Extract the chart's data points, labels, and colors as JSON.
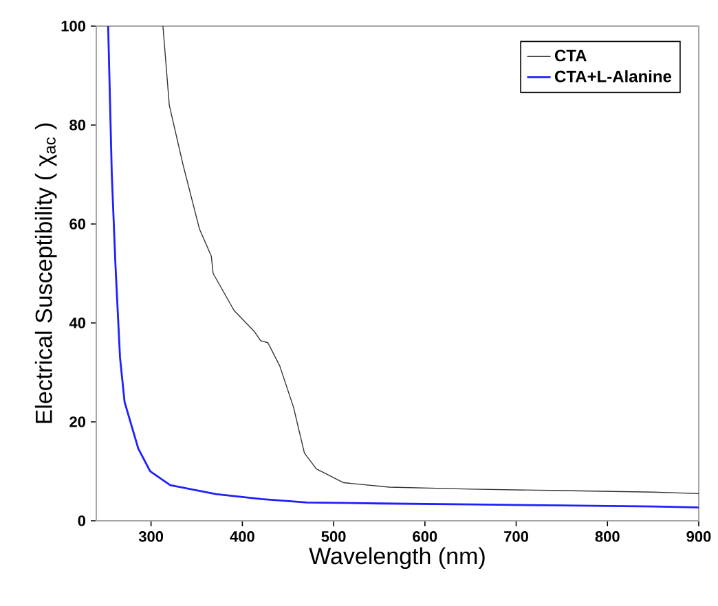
{
  "chart_data": {
    "type": "line",
    "xlabel": "Wavelength (nm)",
    "ylabel": "Electrical Susceptibility ( χ$_{ac}$ )",
    "xlim": [
      240,
      900
    ],
    "ylim": [
      0,
      100
    ],
    "xticks": [
      300,
      400,
      500,
      600,
      700,
      800,
      900
    ],
    "yticks": [
      0,
      20,
      40,
      60,
      80,
      100
    ],
    "grid": false,
    "legend": "top right",
    "marker": "none",
    "line_style": "solid",
    "series": [
      {
        "name": "CTA",
        "color": "#333333",
        "x": [
          313,
          320,
          335,
          353,
          366,
          368,
          391,
          413,
          420,
          428,
          441,
          456,
          468,
          481,
          511,
          561,
          650,
          750,
          850,
          900
        ],
        "values": [
          100,
          84,
          72,
          59,
          53.5,
          50,
          42.5,
          38.3,
          36.4,
          36,
          31.3,
          23,
          13.7,
          10.5,
          7.7,
          6.8,
          6.4,
          6.1,
          5.8,
          5.5
        ]
      },
      {
        "name": "CTA+L-Alanine",
        "color": "#1f1fff",
        "x": [
          253,
          257,
          261,
          266,
          271,
          286,
          299,
          321,
          371,
          421,
          471,
          550,
          650,
          750,
          850,
          900
        ],
        "values": [
          100,
          70,
          51.7,
          33,
          24,
          14.6,
          10,
          7.2,
          5.4,
          4.4,
          3.7,
          3.5,
          3.3,
          3.1,
          2.9,
          2.7
        ]
      }
    ]
  }
}
